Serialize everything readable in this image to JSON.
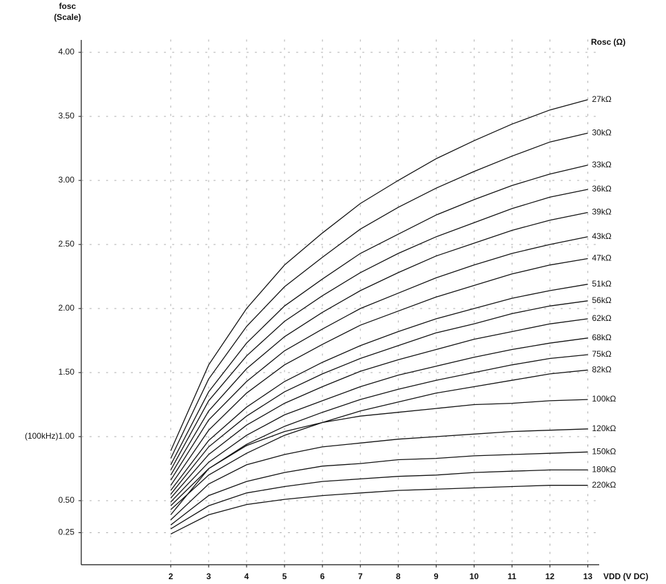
{
  "chart_data": {
    "type": "line",
    "y_label": [
      "fosc",
      "(Scale)"
    ],
    "x_label": "VDD (V DC)",
    "legend_title": "Rosc (Ω)",
    "x": [
      2,
      3,
      4,
      5,
      6,
      7,
      8,
      9,
      10,
      11,
      12,
      13
    ],
    "xlim": [
      -0.36,
      13.3
    ],
    "xticks": [
      2,
      3,
      4,
      5,
      6,
      7,
      8,
      9,
      10,
      11,
      12,
      13
    ],
    "ylim": [
      0,
      4.1
    ],
    "yticks": [
      0.25,
      {
        "value": 0.5,
        "label": "0.50"
      },
      {
        "value": 1,
        "label": "(100kHz)1.00"
      },
      {
        "value": 1.5,
        "label": "1.50"
      },
      {
        "value": 2,
        "label": "2.00"
      },
      {
        "value": 2.5,
        "label": "2.50"
      },
      {
        "value": 3,
        "label": "3.00"
      },
      {
        "value": 3.5,
        "label": "3.50"
      },
      {
        "value": 4,
        "label": "4.00"
      }
    ],
    "grid": true,
    "color": "#111111",
    "series": [
      {
        "name": "27kΩ",
        "values": [
          0.89,
          1.56,
          2.0,
          2.34,
          2.59,
          2.82,
          3.0,
          3.17,
          3.31,
          3.44,
          3.55,
          3.63
        ]
      },
      {
        "name": "30kΩ",
        "values": [
          0.83,
          1.45,
          1.86,
          2.17,
          2.4,
          2.62,
          2.79,
          2.94,
          3.07,
          3.19,
          3.3,
          3.37
        ]
      },
      {
        "name": "33kΩ",
        "values": [
          0.78,
          1.35,
          1.73,
          2.02,
          2.23,
          2.43,
          2.58,
          2.73,
          2.85,
          2.96,
          3.05,
          3.12
        ]
      },
      {
        "name": "36kΩ",
        "values": [
          0.74,
          1.28,
          1.63,
          1.9,
          2.1,
          2.28,
          2.43,
          2.56,
          2.67,
          2.78,
          2.87,
          2.93
        ]
      },
      {
        "name": "39kΩ",
        "values": [
          0.7,
          1.2,
          1.53,
          1.78,
          1.97,
          2.14,
          2.28,
          2.41,
          2.51,
          2.61,
          2.69,
          2.75
        ]
      },
      {
        "name": "43kΩ",
        "values": [
          0.66,
          1.13,
          1.43,
          1.67,
          1.84,
          2.0,
          2.12,
          2.24,
          2.34,
          2.43,
          2.5,
          2.56
        ]
      },
      {
        "name": "47kΩ",
        "values": [
          0.62,
          1.05,
          1.34,
          1.56,
          1.72,
          1.87,
          1.98,
          2.09,
          2.18,
          2.27,
          2.34,
          2.39
        ]
      },
      {
        "name": "51kΩ",
        "values": [
          0.58,
          0.97,
          1.23,
          1.43,
          1.58,
          1.71,
          1.82,
          1.92,
          2.0,
          2.08,
          2.14,
          2.19
        ]
      },
      {
        "name": "56kΩ",
        "values": [
          0.55,
          0.92,
          1.16,
          1.35,
          1.49,
          1.61,
          1.71,
          1.81,
          1.88,
          1.96,
          2.02,
          2.06
        ]
      },
      {
        "name": "62kΩ",
        "values": [
          0.52,
          0.86,
          1.09,
          1.26,
          1.39,
          1.51,
          1.6,
          1.68,
          1.76,
          1.82,
          1.88,
          1.92
        ]
      },
      {
        "name": "68kΩ",
        "values": [
          0.49,
          0.8,
          1.01,
          1.17,
          1.28,
          1.39,
          1.48,
          1.55,
          1.62,
          1.68,
          1.73,
          1.77
        ]
      },
      {
        "name": "75kΩ",
        "values": [
          0.46,
          0.75,
          0.94,
          1.08,
          1.19,
          1.29,
          1.37,
          1.44,
          1.5,
          1.56,
          1.61,
          1.64
        ]
      },
      {
        "name": "82kΩ",
        "values": [
          0.43,
          0.7,
          0.87,
          1.01,
          1.11,
          1.2,
          1.27,
          1.34,
          1.39,
          1.44,
          1.49,
          1.52
        ]
      },
      {
        "name": "100kΩ",
        "values": [
          0.39,
          0.75,
          0.93,
          1.04,
          1.11,
          1.16,
          1.19,
          1.22,
          1.25,
          1.26,
          1.28,
          1.29
        ]
      },
      {
        "name": "120kΩ",
        "values": [
          0.35,
          0.63,
          0.78,
          0.86,
          0.92,
          0.95,
          0.98,
          1.0,
          1.02,
          1.04,
          1.05,
          1.06
        ]
      },
      {
        "name": "150kΩ",
        "values": [
          0.31,
          0.54,
          0.65,
          0.72,
          0.77,
          0.79,
          0.82,
          0.83,
          0.85,
          0.86,
          0.87,
          0.88
        ]
      },
      {
        "name": "180kΩ",
        "values": [
          0.28,
          0.46,
          0.56,
          0.61,
          0.65,
          0.67,
          0.69,
          0.7,
          0.72,
          0.73,
          0.74,
          0.74
        ]
      },
      {
        "name": "220kΩ",
        "values": [
          0.24,
          0.39,
          0.47,
          0.51,
          0.54,
          0.56,
          0.58,
          0.59,
          0.6,
          0.61,
          0.62,
          0.62
        ]
      }
    ]
  }
}
